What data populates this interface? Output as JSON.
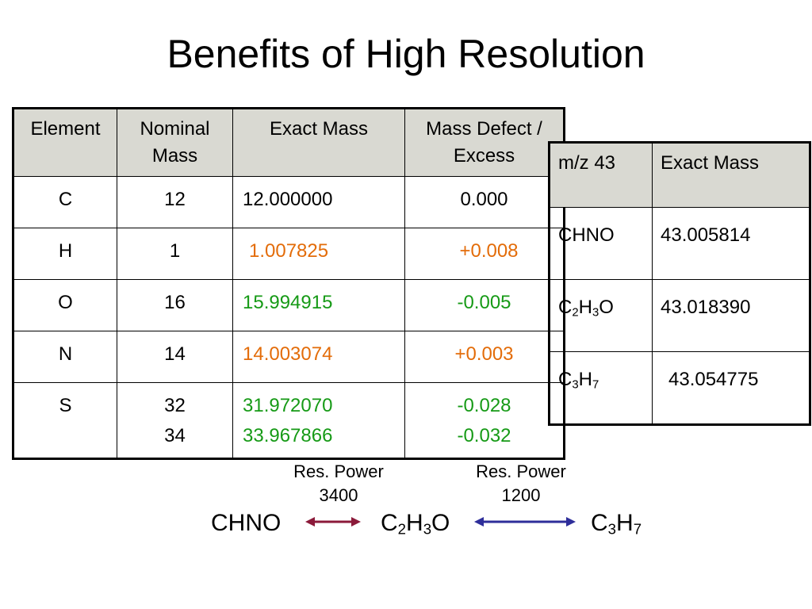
{
  "title": "Benefits of High Resolution",
  "table1": {
    "headers": [
      "Element",
      "Nominal Mass",
      "Exact Mass",
      "Mass Defect / Excess"
    ],
    "rows": [
      {
        "element": "C",
        "nominal": "12",
        "exact": "12.000000",
        "defect": "0.000"
      },
      {
        "element": "H",
        "nominal": "1",
        "exact": "1.007825",
        "defect": "+0.008"
      },
      {
        "element": "O",
        "nominal": "16",
        "exact": "15.994915",
        "defect": "-0.005"
      },
      {
        "element": "N",
        "nominal": "14",
        "exact": "14.003074",
        "defect": "+0.003"
      },
      {
        "element": "S",
        "nominal": "32",
        "nominal2": "34",
        "exact": "31.972070",
        "exact2": "33.967866",
        "defect": "-0.028",
        "defect2": "-0.032"
      }
    ]
  },
  "table2": {
    "headers": [
      "m/z 43",
      "Exact Mass"
    ],
    "rows": [
      {
        "formula": "CHNO",
        "mass": "43.005814"
      },
      {
        "formula_parts": [
          "C",
          "2",
          "H",
          "3",
          "O"
        ],
        "mass": "43.018390"
      },
      {
        "formula_parts": [
          "C",
          "3",
          "H",
          "7"
        ],
        "mass": "43.054775"
      }
    ]
  },
  "diagram": {
    "label1_line1": "Res. Power",
    "label1_line2": "3400",
    "label2_line1": "Res. Power",
    "label2_line2": "1200",
    "f1": "CHNO",
    "f2_parts": [
      "C",
      "2",
      "H",
      "3",
      "O"
    ],
    "f3_parts": [
      "C",
      "3",
      "H",
      "7"
    ],
    "arrow1_color": "#8b1a3a",
    "arrow2_color": "#2e2e9a"
  },
  "colors": {
    "orange": "#e36c09",
    "green": "#169a16",
    "header_bg": "#d9d9d2"
  }
}
